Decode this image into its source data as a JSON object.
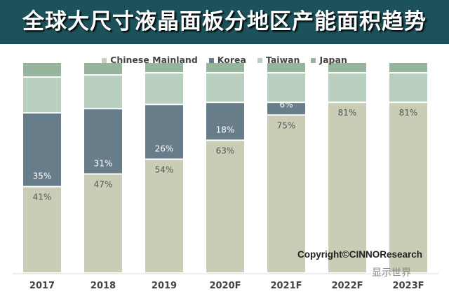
{
  "title": "全球大尺寸液晶面板分地区产能面积趋势",
  "copyright": "Copyright©CINNOResearch",
  "watermark": "显示世界",
  "chart_data": {
    "type": "bar",
    "stacked": true,
    "normalized": true,
    "categories": [
      "2017",
      "2018",
      "2019",
      "2020F",
      "2021F",
      "2022F",
      "2023F"
    ],
    "series": [
      {
        "name": "Chinese Mainland",
        "color": "#c9cdb5",
        "values": [
          41,
          47,
          54,
          63,
          75,
          81,
          81
        ],
        "labels": [
          "41%",
          "47%",
          "54%",
          "63%",
          "75%",
          "81%",
          "81%"
        ]
      },
      {
        "name": "Korea",
        "color": "#687d8a",
        "values": [
          35,
          31,
          26,
          18,
          6,
          0,
          0
        ],
        "labels": [
          "35%",
          "31%",
          "26%",
          "18%",
          "6%",
          "",
          ""
        ]
      },
      {
        "name": "Taiwan",
        "color": "#b9cfc0",
        "values": [
          17,
          16,
          15,
          14,
          14,
          14,
          14
        ]
      },
      {
        "name": "Japan",
        "color": "#97b59d",
        "values": [
          7,
          6,
          5,
          5,
          5,
          5,
          5
        ]
      }
    ],
    "ylim": [
      0,
      100
    ],
    "legend": "top",
    "grid": false
  }
}
